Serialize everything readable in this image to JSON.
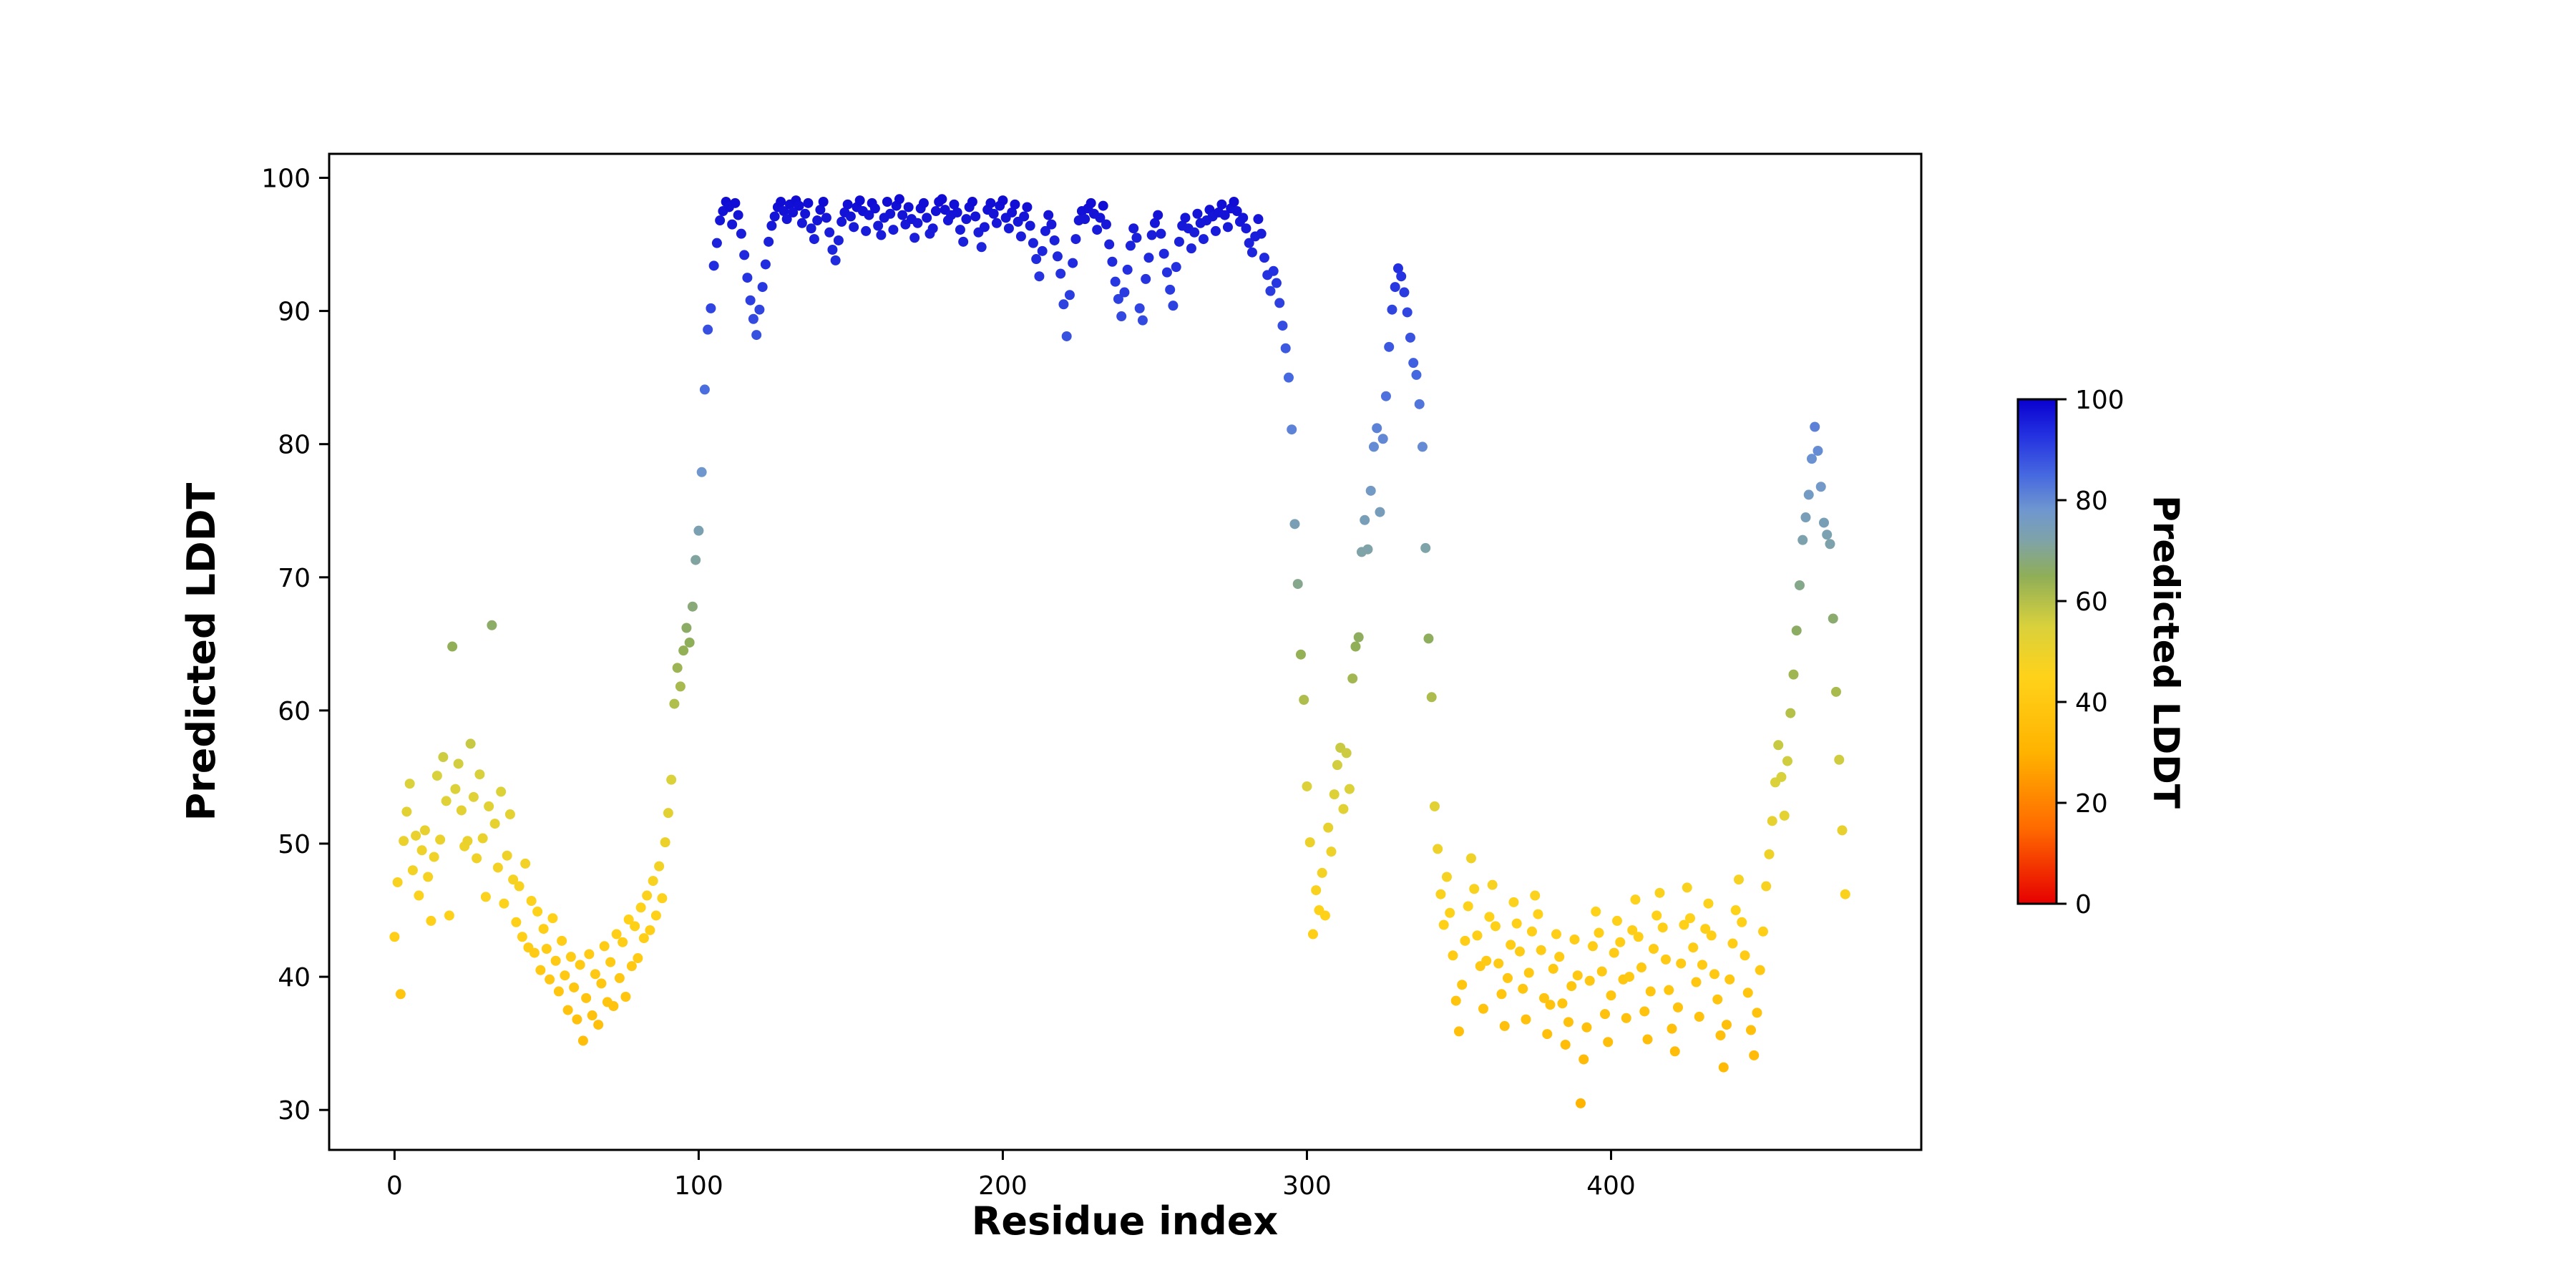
{
  "figure": {
    "background": "#ffffff"
  },
  "chart_data": {
    "type": "scatter",
    "title": "",
    "xlabel": "Residue index",
    "ylabel": "Predicted LDDT",
    "colorbar_label": "Predicted LDDT",
    "xlim": [
      -21.5,
      502
    ],
    "ylim": [
      27.0,
      101.8
    ],
    "x_ticks": [
      0,
      100,
      200,
      300,
      400
    ],
    "y_ticks": [
      30,
      40,
      50,
      60,
      70,
      80,
      90,
      100
    ],
    "colorbar_ticks": [
      0,
      20,
      40,
      60,
      80,
      100
    ],
    "colorbar_range": [
      0,
      100
    ],
    "grid": false,
    "legend": "none",
    "marker_size": 7,
    "colormap": [
      [
        0,
        "#e60000"
      ],
      [
        15,
        "#ff6a00"
      ],
      [
        30,
        "#ffb300"
      ],
      [
        45,
        "#ffd21a"
      ],
      [
        55,
        "#d9d13c"
      ],
      [
        65,
        "#8fae58"
      ],
      [
        72,
        "#7fa3a8"
      ],
      [
        78,
        "#6f97cf"
      ],
      [
        85,
        "#4668e0"
      ],
      [
        93,
        "#2330e0"
      ],
      [
        100,
        "#0a00d0"
      ]
    ],
    "x_start": 0,
    "x_step": 1,
    "values": [
      43.0,
      47.1,
      38.7,
      50.2,
      52.4,
      54.5,
      48.0,
      50.6,
      46.1,
      49.5,
      51.0,
      47.5,
      44.2,
      49.0,
      55.1,
      50.3,
      56.5,
      53.2,
      44.6,
      64.8,
      54.1,
      56.0,
      52.5,
      49.8,
      50.2,
      57.5,
      53.5,
      48.9,
      55.2,
      50.4,
      46.0,
      52.8,
      66.4,
      51.5,
      48.2,
      53.9,
      45.5,
      49.1,
      52.2,
      47.3,
      44.1,
      46.8,
      43.0,
      48.5,
      42.2,
      45.7,
      41.8,
      44.9,
      40.5,
      43.6,
      42.1,
      39.8,
      44.4,
      41.2,
      38.9,
      42.7,
      40.1,
      37.5,
      41.5,
      39.2,
      36.8,
      40.9,
      35.2,
      38.4,
      41.7,
      37.1,
      40.2,
      36.4,
      39.5,
      42.3,
      38.1,
      41.1,
      37.8,
      43.2,
      39.9,
      42.6,
      38.5,
      44.3,
      40.8,
      43.8,
      41.4,
      45.2,
      42.9,
      46.1,
      43.5,
      47.2,
      44.6,
      48.3,
      45.9,
      50.1,
      52.3,
      54.8,
      60.5,
      63.2,
      61.8,
      64.5,
      66.2,
      65.1,
      67.8,
      71.3,
      73.5,
      77.9,
      84.1,
      88.6,
      90.2,
      93.4,
      95.1,
      96.8,
      97.5,
      98.2,
      97.8,
      96.5,
      98.1,
      97.2,
      95.8,
      94.2,
      92.5,
      90.8,
      89.4,
      88.2,
      90.1,
      91.8,
      93.5,
      95.2,
      96.4,
      97.1,
      97.8,
      98.2,
      97.5,
      96.9,
      98.0,
      97.4,
      98.3,
      97.9,
      96.6,
      97.3,
      98.1,
      96.2,
      95.4,
      96.8,
      97.6,
      98.2,
      97.0,
      95.9,
      94.6,
      93.8,
      95.3,
      96.7,
      97.4,
      98.0,
      97.1,
      96.3,
      97.8,
      98.3,
      97.5,
      96.0,
      97.2,
      98.1,
      97.7,
      96.4,
      95.7,
      97.0,
      98.2,
      97.3,
      96.1,
      97.9,
      98.4,
      97.2,
      96.5,
      97.8,
      96.9,
      95.5,
      96.6,
      97.7,
      98.1,
      97.0,
      95.8,
      96.2,
      97.5,
      98.2,
      98.4,
      97.6,
      96.8,
      97.2,
      98.0,
      97.4,
      96.1,
      95.2,
      96.9,
      97.8,
      98.2,
      97.1,
      95.9,
      94.8,
      96.3,
      97.6,
      98.1,
      97.3,
      96.6,
      97.9,
      98.3,
      97.0,
      96.2,
      97.4,
      98.0,
      96.7,
      95.6,
      97.1,
      97.8,
      96.4,
      95.1,
      93.9,
      92.6,
      94.5,
      96.0,
      97.2,
      96.5,
      95.3,
      94.1,
      92.8,
      90.5,
      88.1,
      91.2,
      93.6,
      95.4,
      96.8,
      97.5,
      96.9,
      97.7,
      98.1,
      97.3,
      96.1,
      97.0,
      97.9,
      96.5,
      95.0,
      93.7,
      92.2,
      90.9,
      89.6,
      91.4,
      93.1,
      94.9,
      96.2,
      95.5,
      90.2,
      89.3,
      92.4,
      94.0,
      95.7,
      96.6,
      97.2,
      95.8,
      94.3,
      92.9,
      91.6,
      90.4,
      93.3,
      95.2,
      96.4,
      97.0,
      96.2,
      94.7,
      95.9,
      97.3,
      96.6,
      95.4,
      96.8,
      97.6,
      97.1,
      96.0,
      97.4,
      98.0,
      97.2,
      96.3,
      97.7,
      98.2,
      97.5,
      96.7,
      97.0,
      96.2,
      95.1,
      94.4,
      95.6,
      96.9,
      95.8,
      94.0,
      92.7,
      91.5,
      93.0,
      92.1,
      90.6,
      88.9,
      87.2,
      85.0,
      81.1,
      74.0,
      69.5,
      64.2,
      60.8,
      54.3,
      50.1,
      43.2,
      46.5,
      45.0,
      47.8,
      44.6,
      51.2,
      49.4,
      53.7,
      55.9,
      57.2,
      52.6,
      56.8,
      54.1,
      62.4,
      64.8,
      65.5,
      71.9,
      74.3,
      72.1,
      76.5,
      79.8,
      81.2,
      74.9,
      80.4,
      83.6,
      87.3,
      90.1,
      91.8,
      93.2,
      92.6,
      91.4,
      89.9,
      88.0,
      86.1,
      85.2,
      83.0,
      79.8,
      72.2,
      65.4,
      61.0,
      52.8,
      49.6,
      46.2,
      43.9,
      47.5,
      44.8,
      41.6,
      38.2,
      35.9,
      39.4,
      42.7,
      45.3,
      48.9,
      46.6,
      43.1,
      40.8,
      37.6,
      41.2,
      44.5,
      46.9,
      43.8,
      41.0,
      38.7,
      36.3,
      39.9,
      42.4,
      45.6,
      44.0,
      41.9,
      39.1,
      36.8,
      40.3,
      43.4,
      46.1,
      44.7,
      42.0,
      38.4,
      35.7,
      37.9,
      40.6,
      43.2,
      41.5,
      38.0,
      34.9,
      36.6,
      39.3,
      42.8,
      40.1,
      30.5,
      33.8,
      36.2,
      39.7,
      42.3,
      44.9,
      43.3,
      40.4,
      37.2,
      35.1,
      38.6,
      41.8,
      44.2,
      42.6,
      39.8,
      36.9,
      40.0,
      43.5,
      45.8,
      43.0,
      40.7,
      37.4,
      35.3,
      38.9,
      42.1,
      44.6,
      46.3,
      43.7,
      41.3,
      39.0,
      36.1,
      34.4,
      37.7,
      41.0,
      43.9,
      46.7,
      44.4,
      42.2,
      39.6,
      37.0,
      40.9,
      43.6,
      45.5,
      43.1,
      40.2,
      38.3,
      35.6,
      33.2,
      36.4,
      39.8,
      42.5,
      45.0,
      47.3,
      44.1,
      41.6,
      38.8,
      36.0,
      34.1,
      37.3,
      40.5,
      43.4,
      46.8,
      49.2,
      51.7,
      54.6,
      57.4,
      55.0,
      52.1,
      56.2,
      59.8,
      62.7,
      66.0,
      69.4,
      72.8,
      74.5,
      76.2,
      78.9,
      81.3,
      79.5,
      76.8,
      74.1,
      73.2,
      72.5,
      66.9,
      61.4,
      56.3,
      51.0,
      46.2
    ]
  }
}
